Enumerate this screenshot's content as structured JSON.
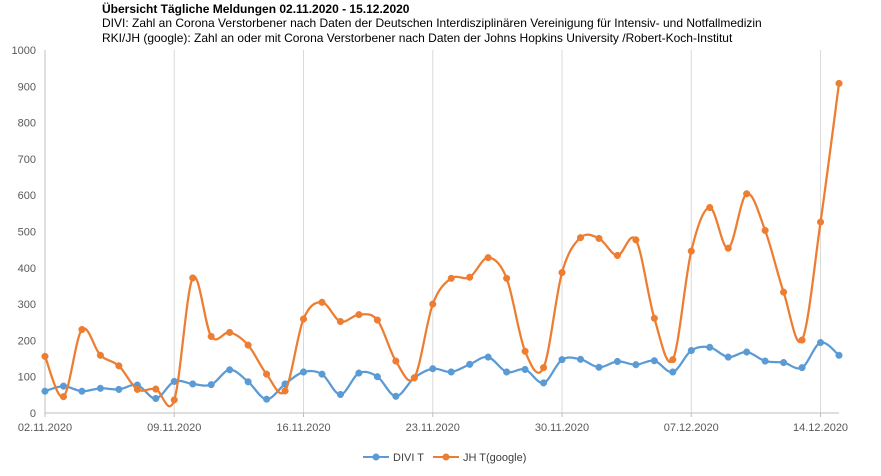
{
  "chart_data": {
    "type": "line",
    "title": "Übersicht Tägliche Meldungen 02.11.2020 - 15.12.2020",
    "subtitle_lines": [
      "DIVI: Zahl an Corona Verstorbener nach Daten der Deutschen Interdisziplinären Vereinigung für Intensiv- und Notfallmedizin",
      "RKI/JH (google): Zahl an oder mit Corona Verstorbener nach Daten der  Johns Hopkins University /Robert-Koch-Institut"
    ],
    "xlabel": "",
    "ylabel": "",
    "ylim": [
      0,
      1000
    ],
    "yticks": [
      0,
      100,
      200,
      300,
      400,
      500,
      600,
      700,
      800,
      900,
      1000
    ],
    "x_tick_labels": [
      "02.11.2020",
      "09.11.2020",
      "16.11.2020",
      "23.11.2020",
      "30.11.2020",
      "07.12.2020",
      "14.12.2020"
    ],
    "x_tick_index": [
      0,
      7,
      14,
      21,
      28,
      35,
      42
    ],
    "x": [
      "02.11.2020",
      "03.11.2020",
      "04.11.2020",
      "05.11.2020",
      "06.11.2020",
      "07.11.2020",
      "08.11.2020",
      "09.11.2020",
      "10.11.2020",
      "11.11.2020",
      "12.11.2020",
      "13.11.2020",
      "14.11.2020",
      "15.11.2020",
      "16.11.2020",
      "17.11.2020",
      "18.11.2020",
      "19.11.2020",
      "20.11.2020",
      "21.11.2020",
      "22.11.2020",
      "23.11.2020",
      "24.11.2020",
      "25.11.2020",
      "26.11.2020",
      "27.11.2020",
      "28.11.2020",
      "29.11.2020",
      "30.11.2020",
      "01.12.2020",
      "02.12.2020",
      "03.12.2020",
      "04.12.2020",
      "05.12.2020",
      "06.12.2020",
      "07.12.2020",
      "08.12.2020",
      "09.12.2020",
      "10.12.2020",
      "11.12.2020",
      "12.12.2020",
      "13.12.2020",
      "14.12.2020",
      "15.12.2020"
    ],
    "grid": "vertical gridlines at x ticks",
    "legend_position": "bottom-center",
    "series": [
      {
        "name": "DIVI T",
        "color": "#5b9bd5",
        "values": [
          60,
          74,
          60,
          68,
          65,
          77,
          40,
          87,
          80,
          78,
          119,
          86,
          38,
          80,
          113,
          107,
          51,
          110,
          100,
          46,
          97,
          122,
          113,
          134,
          154,
          113,
          120,
          83,
          147,
          148,
          126,
          142,
          133,
          144,
          113,
          172,
          181,
          154,
          168,
          143,
          139,
          125,
          194,
          159
        ]
      },
      {
        "name": "JH T(google)",
        "color": "#ed7d31",
        "values": [
          156,
          45,
          230,
          159,
          130,
          65,
          66,
          36,
          372,
          211,
          222,
          187,
          107,
          61,
          259,
          305,
          252,
          271,
          256,
          143,
          97,
          300,
          371,
          374,
          428,
          371,
          170,
          125,
          387,
          483,
          481,
          434,
          477,
          261,
          147,
          446,
          566,
          454,
          604,
          503,
          333,
          201,
          526,
          908
        ]
      }
    ]
  },
  "legend": [
    {
      "label": "DIVI T",
      "color": "#5b9bd5"
    },
    {
      "label": "JH T(google)",
      "color": "#ed7d31"
    }
  ]
}
